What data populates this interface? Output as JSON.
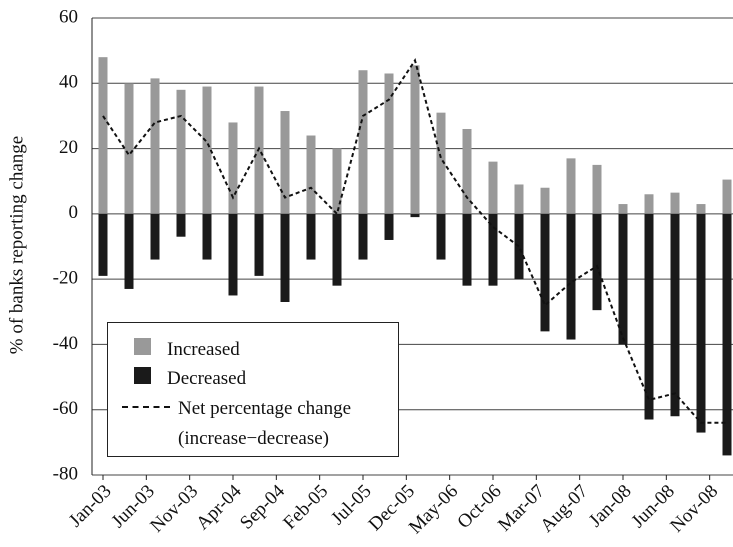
{
  "chart_data": {
    "type": "bar-line",
    "y_label": "% of banks reporting change",
    "categories": [
      "Jan-03",
      null,
      null,
      null,
      null,
      "Jun-03",
      null,
      null,
      null,
      null,
      "Nov-03",
      null,
      null,
      null,
      null,
      "Apr-04",
      null,
      null,
      null,
      null,
      "Sep-04",
      null,
      null,
      null,
      null,
      "Feb-05",
      null,
      null,
      null,
      null,
      "Jul-05",
      null,
      null,
      null,
      null,
      "Dec-05",
      null,
      null,
      null,
      null,
      "May-06",
      null,
      null,
      null,
      null,
      "Oct-06",
      null,
      null,
      null,
      null,
      "Mar-07",
      null,
      null,
      null,
      null,
      "Aug-07",
      null,
      null,
      null,
      null,
      "Jan-08",
      null,
      null,
      null,
      null,
      "Jun-08",
      null,
      null,
      null,
      null,
      "Nov-08",
      null,
      null
    ],
    "series": [
      {
        "name": "Increased",
        "type": "bar",
        "color": "#999999",
        "values": [
          48,
          null,
          null,
          40,
          null,
          null,
          41.5,
          null,
          null,
          38,
          null,
          null,
          39,
          null,
          null,
          28,
          null,
          null,
          39,
          null,
          null,
          31.5,
          null,
          null,
          24,
          null,
          null,
          20,
          null,
          null,
          44,
          null,
          null,
          43,
          null,
          null,
          45.5,
          null,
          null,
          31,
          null,
          null,
          26,
          null,
          null,
          16,
          null,
          null,
          9,
          null,
          null,
          8,
          null,
          null,
          17,
          null,
          null,
          15,
          null,
          null,
          3,
          null,
          null,
          6,
          null,
          null,
          6.5,
          null,
          null,
          3,
          null,
          null,
          10.5
        ]
      },
      {
        "name": "Decreased",
        "type": "bar",
        "color": "#1a1a1a",
        "values": [
          -19,
          null,
          null,
          -23,
          null,
          null,
          -14,
          null,
          null,
          -7,
          null,
          null,
          -14,
          null,
          null,
          -25,
          null,
          null,
          -19,
          null,
          null,
          -27,
          null,
          null,
          -14,
          null,
          null,
          -22,
          null,
          null,
          -14,
          null,
          null,
          -8,
          null,
          null,
          -1,
          null,
          null,
          -14,
          null,
          null,
          -22,
          null,
          null,
          -22,
          null,
          null,
          -20,
          null,
          null,
          -36,
          null,
          null,
          -38.5,
          null,
          null,
          -29.5,
          null,
          null,
          -40,
          null,
          null,
          -63,
          null,
          null,
          -62,
          null,
          null,
          -67,
          null,
          null,
          -74
        ]
      },
      {
        "name": "Net percentage change (increase−decrease)",
        "type": "line",
        "color": "#111111",
        "values": [
          30,
          null,
          null,
          18,
          null,
          null,
          28,
          null,
          null,
          30,
          null,
          null,
          22,
          null,
          null,
          5,
          null,
          null,
          20,
          null,
          null,
          5,
          null,
          null,
          8,
          null,
          null,
          0,
          null,
          null,
          30,
          null,
          null,
          35,
          null,
          null,
          47,
          null,
          null,
          17,
          null,
          null,
          5,
          null,
          null,
          -4,
          null,
          null,
          -10,
          null,
          null,
          -28,
          null,
          null,
          -21,
          null,
          null,
          -16,
          null,
          null,
          -38,
          null,
          null,
          -57,
          null,
          null,
          -55,
          null,
          null,
          -64,
          null,
          null,
          -64
        ]
      }
    ],
    "ylim": [
      -80,
      60
    ],
    "yticks": [
      -80,
      -60,
      -40,
      -20,
      0,
      20,
      40,
      60
    ],
    "grid": true
  }
}
